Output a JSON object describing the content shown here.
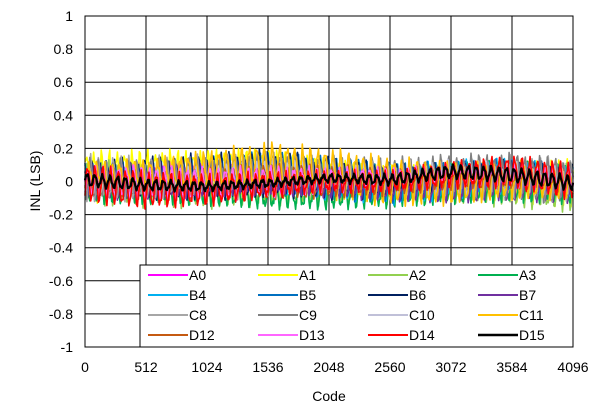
{
  "chart_data": {
    "type": "line",
    "xlabel": "Code",
    "ylabel": "INL (LSB)",
    "xlim": [
      0,
      4096
    ],
    "ylim": [
      -1,
      1
    ],
    "x_ticks": [
      0,
      512,
      1024,
      1536,
      2048,
      2560,
      3072,
      3584,
      4096
    ],
    "y_ticks": [
      1,
      0.8,
      0.6,
      0.4,
      0.2,
      0,
      -0.2,
      -0.4,
      -0.6,
      -0.8,
      -1
    ],
    "x_tick_labels": [
      "0",
      "512",
      "1024",
      "1536",
      "2048",
      "2560",
      "3072",
      "3584",
      "4096"
    ],
    "y_tick_labels": [
      "1",
      "0.8",
      "0.6",
      "0.4",
      "0.2",
      "0",
      "-0.2",
      "-0.4",
      "-0.6",
      "-0.8",
      "-1"
    ],
    "grid": true,
    "legend_position": "bottom-right",
    "legend_columns": 4,
    "series": [
      {
        "name": "A0",
        "color": "#FF00FF",
        "center": [
          [
            0,
            0.0
          ],
          [
            512,
            0.0
          ],
          [
            1024,
            0.0
          ],
          [
            1536,
            0.02
          ],
          [
            2048,
            0.0
          ],
          [
            2560,
            0.0
          ],
          [
            3072,
            0.0
          ],
          [
            3584,
            0.02
          ],
          [
            4096,
            -0.02
          ]
        ],
        "amplitude": 0.1
      },
      {
        "name": "A1",
        "color": "#FFFF00",
        "center": [
          [
            0,
            0.03
          ],
          [
            512,
            0.03
          ],
          [
            1024,
            0.04
          ],
          [
            1536,
            0.07
          ],
          [
            2048,
            0.03
          ],
          [
            2560,
            0.0
          ],
          [
            3072,
            0.0
          ],
          [
            3584,
            0.0
          ],
          [
            4096,
            -0.01
          ]
        ],
        "amplitude": 0.14
      },
      {
        "name": "A2",
        "color": "#92D050",
        "center": [
          [
            0,
            0.0
          ],
          [
            512,
            -0.03
          ],
          [
            1024,
            -0.06
          ],
          [
            1536,
            -0.06
          ],
          [
            2048,
            -0.06
          ],
          [
            2560,
            -0.04
          ],
          [
            3072,
            -0.01
          ],
          [
            3584,
            -0.02
          ],
          [
            4096,
            -0.04
          ]
        ],
        "amplitude": 0.12
      },
      {
        "name": "A3",
        "color": "#00B050",
        "center": [
          [
            0,
            -0.03
          ],
          [
            512,
            -0.05
          ],
          [
            1024,
            -0.07
          ],
          [
            1536,
            -0.09
          ],
          [
            2048,
            -0.08
          ],
          [
            2560,
            -0.05
          ],
          [
            3072,
            -0.01
          ],
          [
            3584,
            0.0
          ],
          [
            4096,
            -0.02
          ]
        ],
        "amplitude": 0.11
      },
      {
        "name": "B4",
        "color": "#00B0F0",
        "center": [
          [
            0,
            0.03
          ],
          [
            512,
            0.01
          ],
          [
            1024,
            0.02
          ],
          [
            1536,
            0.03
          ],
          [
            2048,
            0.0
          ],
          [
            2560,
            -0.02
          ],
          [
            3072,
            0.01
          ],
          [
            3584,
            0.04
          ],
          [
            4096,
            0.0
          ]
        ],
        "amplitude": 0.1
      },
      {
        "name": "B5",
        "color": "#0070C0",
        "center": [
          [
            0,
            0.04
          ],
          [
            512,
            0.03
          ],
          [
            1024,
            0.04
          ],
          [
            1536,
            0.06
          ],
          [
            2048,
            0.02
          ],
          [
            2560,
            -0.01
          ],
          [
            3072,
            0.02
          ],
          [
            3584,
            0.05
          ],
          [
            4096,
            0.01
          ]
        ],
        "amplitude": 0.11
      },
      {
        "name": "B6",
        "color": "#002060",
        "center": [
          [
            0,
            0.03
          ],
          [
            512,
            0.02
          ],
          [
            1024,
            0.03
          ],
          [
            1536,
            0.05
          ],
          [
            2048,
            0.02
          ],
          [
            2560,
            0.0
          ],
          [
            3072,
            0.02
          ],
          [
            3584,
            0.05
          ],
          [
            4096,
            0.01
          ]
        ],
        "amplitude": 0.12
      },
      {
        "name": "B7",
        "color": "#7030A0",
        "center": [
          [
            0,
            0.0
          ],
          [
            512,
            0.01
          ],
          [
            1024,
            0.02
          ],
          [
            1536,
            0.02
          ],
          [
            2048,
            -0.02
          ],
          [
            2560,
            -0.05
          ],
          [
            3072,
            -0.06
          ],
          [
            3584,
            -0.03
          ],
          [
            4096,
            -0.04
          ]
        ],
        "amplitude": 0.1
      },
      {
        "name": "C8",
        "color": "#A6A6A6",
        "center": [
          [
            0,
            0.02
          ],
          [
            512,
            0.02
          ],
          [
            1024,
            0.05
          ],
          [
            1536,
            0.08
          ],
          [
            2048,
            0.05
          ],
          [
            2560,
            0.02
          ],
          [
            3072,
            0.02
          ],
          [
            3584,
            0.03
          ],
          [
            4096,
            0.0
          ]
        ],
        "amplitude": 0.12
      },
      {
        "name": "C9",
        "color": "#808080",
        "center": [
          [
            0,
            0.02
          ],
          [
            512,
            0.03
          ],
          [
            1024,
            0.06
          ],
          [
            1536,
            0.1
          ],
          [
            2048,
            0.06
          ],
          [
            2560,
            0.03
          ],
          [
            3072,
            0.03
          ],
          [
            3584,
            0.03
          ],
          [
            4096,
            0.0
          ]
        ],
        "amplitude": 0.12
      },
      {
        "name": "C10",
        "color": "#C0C0D8",
        "center": [
          [
            0,
            0.01
          ],
          [
            512,
            0.01
          ],
          [
            1024,
            0.03
          ],
          [
            1536,
            0.05
          ],
          [
            2048,
            0.03
          ],
          [
            2560,
            0.01
          ],
          [
            3072,
            0.01
          ],
          [
            3584,
            0.01
          ],
          [
            4096,
            -0.01
          ]
        ],
        "amplitude": 0.1
      },
      {
        "name": "C11",
        "color": "#FFC000",
        "center": [
          [
            0,
            0.03
          ],
          [
            512,
            0.04
          ],
          [
            1024,
            0.07
          ],
          [
            1536,
            0.1
          ],
          [
            2048,
            0.05
          ],
          [
            2560,
            0.0
          ],
          [
            3072,
            -0.01
          ],
          [
            3584,
            0.0
          ],
          [
            4096,
            -0.02
          ]
        ],
        "amplitude": 0.13
      },
      {
        "name": "D12",
        "color": "#C55A11",
        "center": [
          [
            0,
            0.0
          ],
          [
            512,
            -0.02
          ],
          [
            1024,
            -0.02
          ],
          [
            1536,
            0.0
          ],
          [
            2048,
            0.0
          ],
          [
            2560,
            0.0
          ],
          [
            3072,
            0.02
          ],
          [
            3584,
            0.02
          ],
          [
            4096,
            0.0
          ]
        ],
        "amplitude": 0.09
      },
      {
        "name": "D13",
        "color": "#FF66FF",
        "center": [
          [
            0,
            0.0
          ],
          [
            512,
            -0.01
          ],
          [
            1024,
            -0.02
          ],
          [
            1536,
            0.0
          ],
          [
            2048,
            0.01
          ],
          [
            2560,
            0.02
          ],
          [
            3072,
            0.04
          ],
          [
            3584,
            0.04
          ],
          [
            4096,
            0.01
          ]
        ],
        "amplitude": 0.09
      },
      {
        "name": "D14",
        "color": "#FF0000",
        "center": [
          [
            0,
            -0.01
          ],
          [
            512,
            -0.05
          ],
          [
            1024,
            -0.05
          ],
          [
            1536,
            -0.02
          ],
          [
            2048,
            0.0
          ],
          [
            2560,
            0.0
          ],
          [
            3072,
            0.04
          ],
          [
            3584,
            0.06
          ],
          [
            4096,
            0.0
          ]
        ],
        "amplitude": 0.1
      },
      {
        "name": "D15",
        "color": "#000000",
        "center": [
          [
            0,
            0.01
          ],
          [
            512,
            -0.02
          ],
          [
            1024,
            -0.03
          ],
          [
            1536,
            -0.01
          ],
          [
            2048,
            0.02
          ],
          [
            2560,
            0.01
          ],
          [
            3072,
            0.06
          ],
          [
            3584,
            0.04
          ],
          [
            4096,
            -0.01
          ]
        ],
        "amplitude": 0.04
      }
    ]
  }
}
